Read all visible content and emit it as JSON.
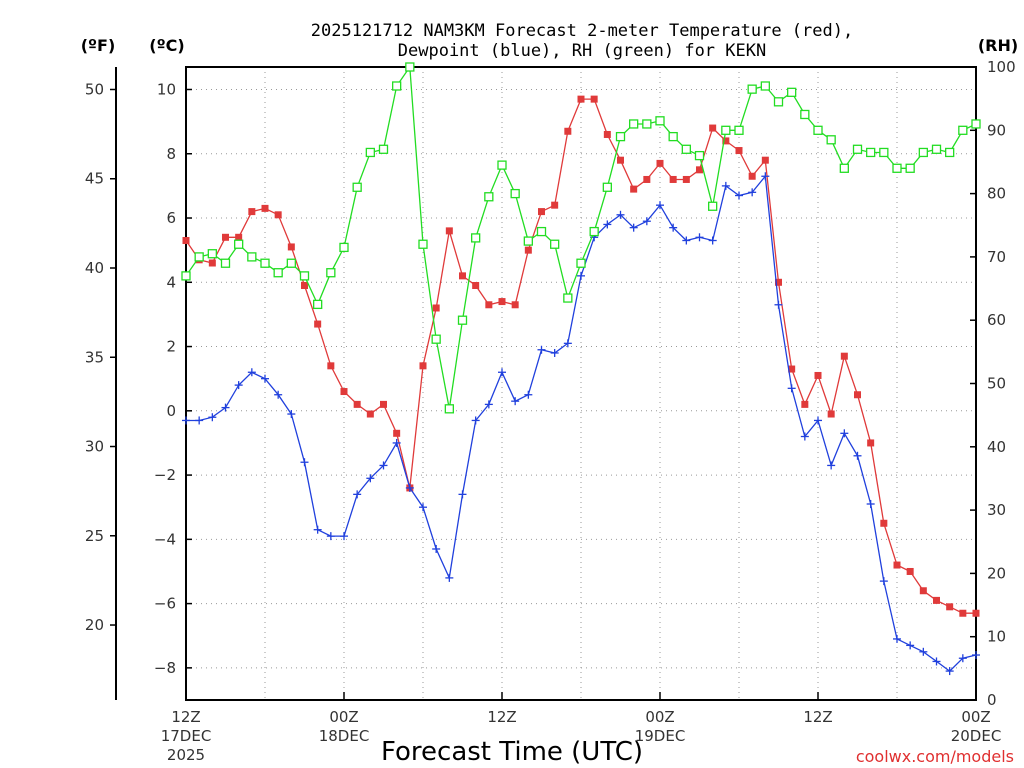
{
  "chart_data": {
    "type": "line",
    "title_line1": "2025121712 NAM3KM Forecast 2-meter Temperature (red),",
    "title_line2": "Dewpoint (blue), RH (green) for KEKN",
    "unit_labels": {
      "f": "(ºF)",
      "c": "(ºC)",
      "rh": "(RH)"
    },
    "xlabel": "Forecast Time (UTC)",
    "credit": "coolwx.com/models",
    "x_range_hours": [
      0,
      60
    ],
    "celsius_range": [
      -9,
      10.7
    ],
    "rh_range": [
      0,
      100
    ],
    "celsius_ticks": [
      "10",
      "8",
      "6",
      "4",
      "2",
      "0",
      "−2",
      "−4",
      "−6",
      "−8"
    ],
    "fahrenheit_ticks": [
      "50",
      "45",
      "40",
      "35",
      "30",
      "25",
      "20"
    ],
    "rh_ticks": [
      "100",
      "90",
      "80",
      "70",
      "60",
      "50",
      "40",
      "30",
      "20",
      "10",
      "0"
    ],
    "x_ticks": [
      {
        "hour": 0,
        "label": "12Z",
        "date": "17DEC",
        "year": "2025"
      },
      {
        "hour": 12,
        "label": "00Z",
        "date": "18DEC",
        "year": ""
      },
      {
        "hour": 24,
        "label": "12Z",
        "date": "",
        "year": ""
      },
      {
        "hour": 36,
        "label": "00Z",
        "date": "19DEC",
        "year": ""
      },
      {
        "hour": 48,
        "label": "12Z",
        "date": "",
        "year": ""
      },
      {
        "hour": 60,
        "label": "00Z",
        "date": "20DEC",
        "year": ""
      }
    ],
    "series": [
      {
        "name": "Temperature (red)",
        "color": "#e03a3a",
        "marker": "filled-square",
        "hours": [
          0,
          1,
          2,
          3,
          4,
          5,
          6,
          7,
          8,
          9,
          10,
          11,
          12,
          13,
          14,
          15,
          16,
          17,
          18,
          19,
          20,
          21,
          22,
          23,
          24,
          25,
          26,
          27,
          28,
          29,
          30,
          31,
          32,
          33,
          34,
          35,
          36,
          37,
          38,
          39,
          40,
          41,
          42,
          43,
          44,
          45,
          46,
          47,
          48,
          49,
          50,
          51,
          52,
          53,
          54,
          55,
          56,
          57,
          58,
          59,
          60
        ],
        "values": [
          5.3,
          4.7,
          4.6,
          5.4,
          5.4,
          6.2,
          6.3,
          6.1,
          5.1,
          3.9,
          2.7,
          1.4,
          0.6,
          0.2,
          -0.1,
          0.2,
          -0.7,
          -2.4,
          1.4,
          3.2,
          5.6,
          4.2,
          3.9,
          3.3,
          3.4,
          3.3,
          5.0,
          6.2,
          6.4,
          8.7,
          9.7,
          9.7,
          8.6,
          7.8,
          6.9,
          7.2,
          7.7,
          7.2,
          7.2,
          7.5,
          8.8,
          8.4,
          8.1,
          7.3,
          7.8,
          4.0,
          1.3,
          0.2,
          1.1,
          -0.1,
          1.7,
          0.5,
          -1.0,
          -3.5,
          -4.8,
          -5.0,
          -5.6,
          -5.9,
          -6.1,
          -6.3,
          -6.3
        ]
      },
      {
        "name": "Dewpoint (blue)",
        "color": "#2040dd",
        "marker": "plus",
        "hours": [
          0,
          1,
          2,
          3,
          4,
          5,
          6,
          7,
          8,
          9,
          10,
          11,
          12,
          13,
          14,
          15,
          16,
          17,
          18,
          19,
          20,
          21,
          22,
          23,
          24,
          25,
          26,
          27,
          28,
          29,
          30,
          31,
          32,
          33,
          34,
          35,
          36,
          37,
          38,
          39,
          40,
          41,
          42,
          43,
          44,
          45,
          46,
          47,
          48,
          49,
          50,
          51,
          52,
          53,
          54,
          55,
          56,
          57,
          58,
          59,
          60
        ],
        "values": [
          -0.3,
          -0.3,
          -0.2,
          0.1,
          0.8,
          1.2,
          1.0,
          0.5,
          -0.1,
          -1.6,
          -3.7,
          -3.9,
          -3.9,
          -2.6,
          -2.1,
          -1.7,
          -1.0,
          -2.4,
          -3.0,
          -4.3,
          -5.2,
          -2.6,
          -0.3,
          0.2,
          1.2,
          0.3,
          0.5,
          1.9,
          1.8,
          2.1,
          4.2,
          5.4,
          5.8,
          6.1,
          5.7,
          5.9,
          6.4,
          5.7,
          5.3,
          5.4,
          5.3,
          7.0,
          6.7,
          6.8,
          7.3,
          3.3,
          0.7,
          -0.8,
          -0.3,
          -1.7,
          -0.7,
          -1.4,
          -2.9,
          -5.3,
          -7.1,
          -7.3,
          -7.5,
          -7.8,
          -8.1,
          -7.7,
          -7.6
        ]
      },
      {
        "name": "RH (green)",
        "color": "#22dd22",
        "marker": "open-square",
        "hours": [
          0,
          1,
          2,
          3,
          4,
          5,
          6,
          7,
          8,
          9,
          10,
          11,
          12,
          13,
          14,
          15,
          16,
          17,
          18,
          19,
          20,
          21,
          22,
          23,
          24,
          25,
          26,
          27,
          28,
          29,
          30,
          31,
          32,
          33,
          34,
          35,
          36,
          37,
          38,
          39,
          40,
          41,
          42,
          43,
          44,
          45,
          46,
          47,
          48,
          49,
          50,
          51,
          52,
          53,
          54,
          55,
          56,
          57,
          58,
          59,
          60
        ],
        "values": [
          67,
          70,
          70.5,
          69,
          72,
          70,
          69,
          67.5,
          69,
          67,
          62.5,
          67.5,
          71.5,
          81,
          86.5,
          87,
          97,
          100,
          72,
          57,
          46,
          60,
          73,
          79.5,
          84.5,
          80,
          72.5,
          74,
          72,
          63.5,
          69,
          74,
          81,
          89,
          91,
          91,
          91.5,
          89,
          87,
          86,
          78,
          90,
          90,
          96.5,
          97,
          94.5,
          96,
          92.5,
          90,
          88.5,
          84,
          87,
          86.5,
          86.5,
          84,
          84,
          86.5,
          87,
          86.5,
          90,
          91
        ]
      }
    ]
  }
}
